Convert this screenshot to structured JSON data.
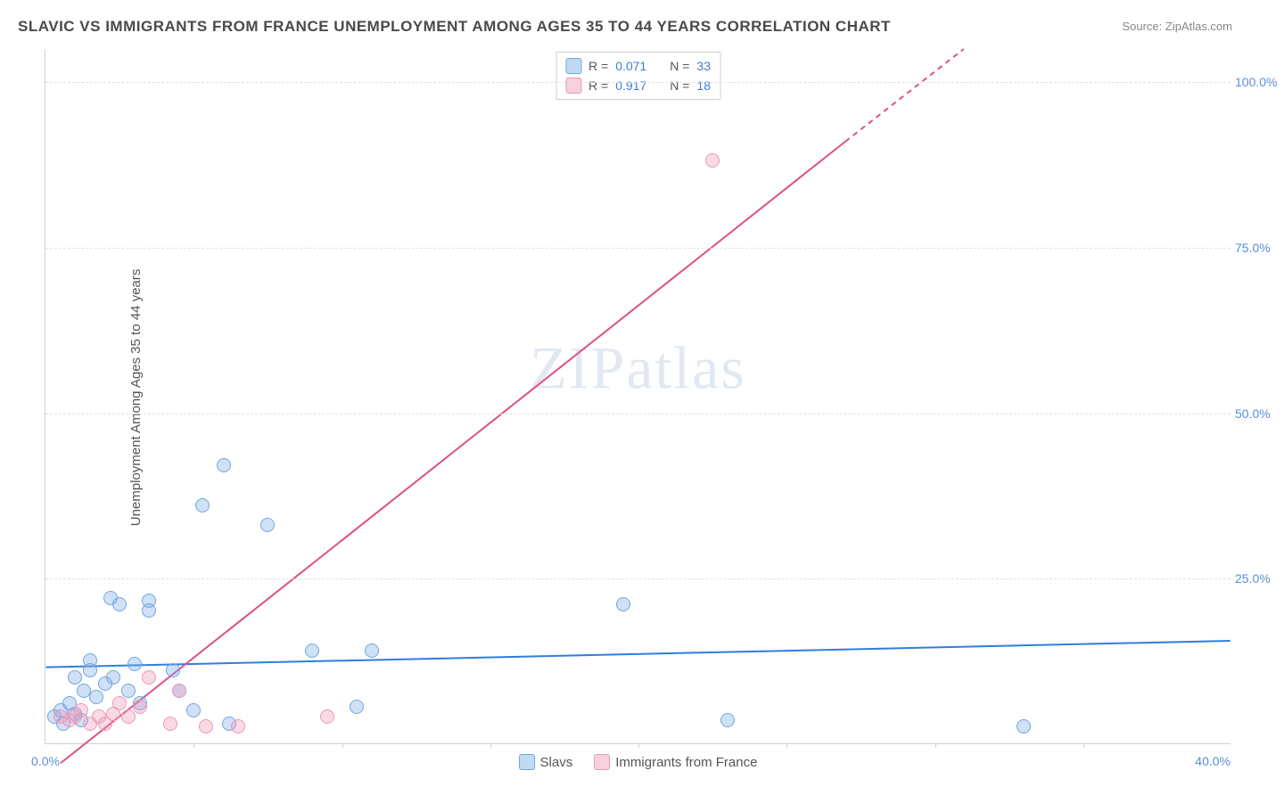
{
  "title": "SLAVIC VS IMMIGRANTS FROM FRANCE UNEMPLOYMENT AMONG AGES 35 TO 44 YEARS CORRELATION CHART",
  "source_prefix": "Source: ",
  "source_name": "ZipAtlas.com",
  "ylabel": "Unemployment Among Ages 35 to 44 years",
  "watermark": "ZIPatlas",
  "chart": {
    "type": "scatter",
    "xlim": [
      0,
      40
    ],
    "ylim": [
      0,
      105
    ],
    "x_tick_label_min": "0.0%",
    "x_tick_label_max": "40.0%",
    "x_minor_tick_count": 8,
    "y_ticks": [
      25,
      50,
      75,
      100
    ],
    "y_tick_labels": [
      "25.0%",
      "50.0%",
      "75.0%",
      "100.0%"
    ],
    "grid_color": "#e0e0e0",
    "axis_color": "#d0d0d0",
    "background_color": "#ffffff",
    "tick_label_color": "#5b8fd6",
    "marker_radius": 8,
    "marker_stroke_width": 1.2,
    "series": [
      {
        "name": "Slavs",
        "fill": "rgba(120,170,230,0.35)",
        "stroke": "#6fa6e0",
        "legend_fill": "rgba(120,170,230,0.45)",
        "legend_stroke": "#6fa6e0",
        "r_value": "0.071",
        "n_value": "33",
        "trend": {
          "x1": 0,
          "y1": 11.5,
          "x2": 40,
          "y2": 15.5,
          "color": "#2f7de1",
          "width": 2,
          "dash": ""
        },
        "points": [
          [
            0.3,
            4
          ],
          [
            0.5,
            5
          ],
          [
            0.6,
            3
          ],
          [
            0.8,
            6
          ],
          [
            1.0,
            4.5
          ],
          [
            1.2,
            3.5
          ],
          [
            1.0,
            10
          ],
          [
            1.3,
            8
          ],
          [
            1.5,
            11
          ],
          [
            1.5,
            12.5
          ],
          [
            1.7,
            7
          ],
          [
            2.0,
            9
          ],
          [
            2.2,
            22
          ],
          [
            2.5,
            21
          ],
          [
            2.3,
            10
          ],
          [
            2.8,
            8
          ],
          [
            3.0,
            12
          ],
          [
            3.2,
            6
          ],
          [
            3.5,
            21.5
          ],
          [
            3.5,
            20
          ],
          [
            4.3,
            11
          ],
          [
            4.5,
            8
          ],
          [
            5.0,
            5
          ],
          [
            5.3,
            36
          ],
          [
            6.0,
            42
          ],
          [
            6.2,
            3
          ],
          [
            7.5,
            33
          ],
          [
            9.0,
            14
          ],
          [
            10.5,
            5.5
          ],
          [
            11.0,
            14
          ],
          [
            19.5,
            21
          ],
          [
            23.0,
            3.5
          ],
          [
            33.0,
            2.5
          ]
        ]
      },
      {
        "name": "Immigrants from France",
        "fill": "rgba(240,150,180,0.35)",
        "stroke": "#e89ab5",
        "legend_fill": "rgba(240,150,180,0.45)",
        "legend_stroke": "#e89ab5",
        "r_value": "0.917",
        "n_value": "18",
        "trend": {
          "x1": 0.5,
          "y1": -3,
          "x2": 27,
          "y2": 91,
          "color": "#e04f87",
          "width": 2,
          "dash": "",
          "ext_x2": 31,
          "ext_y2": 105,
          "ext_dash": "6 5"
        },
        "points": [
          [
            0.5,
            4
          ],
          [
            0.8,
            3.5
          ],
          [
            1.0,
            4
          ],
          [
            1.2,
            5
          ],
          [
            1.5,
            3
          ],
          [
            1.8,
            4
          ],
          [
            2.0,
            3
          ],
          [
            2.3,
            4.5
          ],
          [
            2.5,
            6
          ],
          [
            2.8,
            4
          ],
          [
            3.2,
            5.5
          ],
          [
            3.5,
            10
          ],
          [
            4.2,
            3
          ],
          [
            4.5,
            8
          ],
          [
            5.4,
            2.5
          ],
          [
            6.5,
            2.5
          ],
          [
            9.5,
            4
          ],
          [
            22.5,
            88
          ]
        ]
      }
    ],
    "legend_top": {
      "r_label": "R =",
      "n_label": "N ="
    },
    "legend_bottom_labels": [
      "Slavs",
      "Immigrants from France"
    ]
  }
}
